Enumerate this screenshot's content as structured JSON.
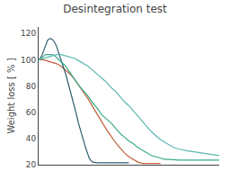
{
  "chart_data": {
    "type": "line",
    "title": "Desintegration test",
    "ylabel": "Weight loss [ % ]",
    "xlim": [
      0,
      200
    ],
    "ylim": [
      20,
      125
    ],
    "yticks": [
      20,
      40,
      60,
      80,
      100,
      120
    ],
    "grid": false,
    "tick_labels": "y",
    "series": [
      {
        "color": "#c0603a",
        "x": [
          0,
          5,
          10,
          15,
          20,
          25,
          30,
          35,
          40,
          45,
          50,
          55,
          60,
          65,
          70,
          75,
          80,
          85,
          90,
          95,
          100,
          105,
          110,
          115,
          120,
          125,
          130,
          135
        ],
        "values": [
          100,
          100,
          99,
          98,
          97,
          95,
          92,
          89,
          85,
          80,
          75,
          70,
          64,
          58,
          52,
          47,
          42,
          37,
          33,
          29,
          26,
          24,
          22,
          21,
          21,
          21,
          21,
          21
        ]
      },
      {
        "color": "#2e5e6e",
        "x": [
          0,
          2,
          4,
          6,
          8,
          10,
          12,
          14,
          16,
          18,
          20,
          22,
          24,
          26,
          28,
          30,
          32,
          34,
          36,
          38,
          40,
          42,
          44,
          46,
          48,
          50,
          52,
          54,
          56,
          58,
          60,
          65,
          70,
          75,
          80,
          85,
          90,
          95,
          100
        ],
        "values": [
          100,
          101,
          104,
          108,
          112,
          115,
          116,
          116,
          115,
          113,
          110,
          106,
          102,
          98,
          94,
          89,
          84,
          79,
          74,
          69,
          63,
          58,
          52,
          47,
          42,
          37,
          33,
          29,
          25,
          23,
          22,
          21.5,
          21.5,
          21.5,
          21.5,
          21.5,
          21.5,
          21.5,
          21.5
        ]
      },
      {
        "color": "#3aaa8a",
        "x": [
          0,
          2,
          4,
          6,
          8,
          10,
          12,
          15,
          18,
          21,
          24,
          27,
          30,
          33,
          36,
          39,
          42,
          45,
          50,
          55,
          60,
          65,
          70,
          75,
          80,
          85,
          90,
          95,
          100,
          105,
          110,
          115,
          120,
          125,
          130,
          135,
          140,
          145,
          150,
          155,
          160,
          165,
          170,
          175,
          180,
          185,
          190,
          195,
          200
        ],
        "values": [
          100,
          101,
          102,
          103,
          104,
          104,
          104,
          104,
          103,
          101,
          99,
          97,
          95,
          92,
          89,
          86,
          83,
          80,
          76,
          72,
          67,
          63,
          58,
          55,
          52,
          48,
          44,
          41,
          38,
          36,
          33,
          31,
          29,
          27,
          26,
          25,
          24,
          24,
          23.5,
          23.5,
          23.5,
          23.5,
          23.5,
          23.5,
          23.5,
          23.5,
          23.5,
          23.5,
          23.5
        ]
      },
      {
        "color": "#5ab8b0",
        "x": [
          0,
          5,
          10,
          15,
          20,
          25,
          30,
          35,
          40,
          45,
          50,
          55,
          60,
          65,
          70,
          75,
          80,
          85,
          90,
          95,
          100,
          105,
          110,
          115,
          120,
          125,
          130,
          135,
          140,
          145,
          150,
          155,
          160,
          165,
          170,
          175,
          180,
          185,
          190,
          195,
          200
        ],
        "values": [
          100,
          101,
          102,
          103,
          104,
          104,
          103,
          102,
          101,
          99,
          97,
          95,
          92,
          89,
          86,
          83,
          79,
          76,
          72,
          68,
          65,
          61,
          57,
          53,
          49,
          45,
          42,
          39,
          37,
          35,
          33,
          32,
          31,
          30.5,
          30,
          29.5,
          29,
          28.5,
          28,
          27.5,
          27
        ]
      }
    ]
  }
}
